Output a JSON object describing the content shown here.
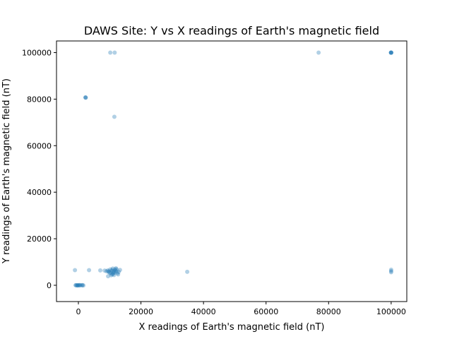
{
  "chart_data": {
    "type": "scatter",
    "title": "DAWS Site: Y vs X readings of Earth's magnetic field",
    "xlabel": "X readings of Earth's magnetic field (nT)",
    "ylabel": "Y readings of Earth's magnetic field (nT)",
    "xlim": [
      -7000,
      105000
    ],
    "ylim": [
      -7000,
      105000
    ],
    "xticks": [
      0,
      20000,
      40000,
      60000,
      80000,
      100000
    ],
    "yticks": [
      0,
      20000,
      40000,
      60000,
      80000,
      100000
    ],
    "xtick_labels": [
      "0",
      "20000",
      "40000",
      "60000",
      "80000",
      "100000"
    ],
    "ytick_labels": [
      "0",
      "20000",
      "40000",
      "60000",
      "80000",
      "100000"
    ],
    "grid": false,
    "legend": "none",
    "marker_color": "#1f77b4",
    "series": [
      {
        "points": [
          [
            99900,
            100000
          ],
          [
            100000,
            100000
          ],
          [
            100050,
            100000
          ],
          [
            99950,
            100000
          ],
          [
            100000,
            99950
          ],
          [
            2300,
            80700
          ],
          [
            2350,
            80600
          ],
          [
            2250,
            80750
          ],
          [
            10200,
            100000
          ],
          [
            11600,
            100000
          ],
          [
            76800,
            100000
          ],
          [
            11500,
            72400
          ],
          [
            -200,
            0
          ],
          [
            0,
            50
          ],
          [
            300,
            -60
          ],
          [
            700,
            20
          ],
          [
            1200,
            10
          ],
          [
            -500,
            30
          ],
          [
            -800,
            0
          ],
          [
            1600,
            -40
          ],
          [
            -900,
            40
          ],
          [
            1300,
            70
          ],
          [
            400,
            90
          ],
          [
            -300,
            -80
          ],
          [
            9800,
            6000
          ],
          [
            10300,
            5200
          ],
          [
            10800,
            4700
          ],
          [
            11200,
            5600
          ],
          [
            11700,
            6800
          ],
          [
            12100,
            5900
          ],
          [
            9400,
            6400
          ],
          [
            10600,
            6200
          ],
          [
            11000,
            7200
          ],
          [
            11400,
            4400
          ],
          [
            10000,
            5400
          ],
          [
            11900,
            6300
          ],
          [
            12500,
            5200
          ],
          [
            9000,
            6000
          ],
          [
            8400,
            6300
          ],
          [
            10500,
            4300
          ],
          [
            11100,
            5000
          ],
          [
            11600,
            5400
          ],
          [
            12200,
            6900
          ],
          [
            9600,
            5800
          ],
          [
            10800,
            6600
          ],
          [
            11300,
            6100
          ],
          [
            12000,
            7300
          ],
          [
            10200,
            6800
          ],
          [
            -1100,
            6500
          ],
          [
            3400,
            6500
          ],
          [
            7000,
            6400
          ],
          [
            12900,
            5800
          ],
          [
            13300,
            6600
          ],
          [
            34800,
            5800
          ],
          [
            100000,
            6700
          ],
          [
            100000,
            5600
          ],
          [
            100000,
            6100
          ],
          [
            9500,
            3900
          ],
          [
            12700,
            4700
          ]
        ]
      }
    ]
  }
}
